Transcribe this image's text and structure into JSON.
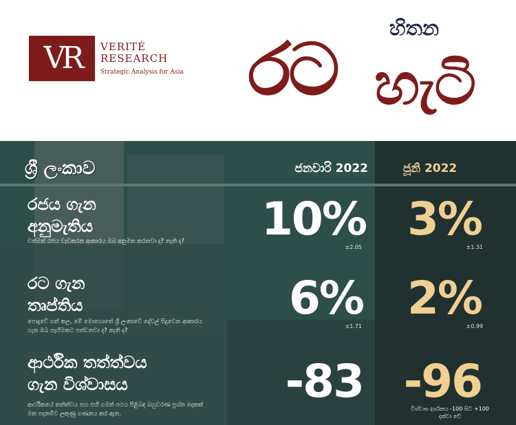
{
  "logo": {
    "mark": "VR",
    "name_line1": "VERITÉ",
    "name_line2": "RESEARCH",
    "tagline": "Strategic Analysis for Asia"
  },
  "brand": {
    "big": "රට",
    "top": "හිතන",
    "mid": "හැටි"
  },
  "table": {
    "country": "ශ්‍රී ලංකාව",
    "col_jan": "ජනවාරි 2022",
    "col_jun": "ජූනි 2022",
    "rows": [
      {
        "title_line1": "රජය ගැන",
        "title_line2": "අනුමැතිය",
        "subtitle": "වත්මන් රජය වැඩකරන ආකාරය ඔබ අනුමත කරනවා ද? නැති ද?",
        "jan_value": "10%",
        "jan_error": "±2.05",
        "jun_value": "3%",
        "jun_error": "±1.31"
      },
      {
        "title_line1": "රට ගැන",
        "title_line2": "තෘප්තිය",
        "subtitle": "පොදුවේ ගත් කල, මේ මොහොතේ ශ්‍රී ලංකාවේ දේවල් සිදුවෙන ආකාරය ගැන ඔබ සෑහීමකට පත්වනවා ද? නැති ද?",
        "jan_value": "6%",
        "jan_error": "±1.71",
        "jun_value": "2%",
        "jun_error": "±0.99"
      },
      {
        "title_line1": "ආර්ථික තත්ත්වය",
        "title_line2": "ගැන විශ්වාසය",
        "subtitle": "ආර්ථිකයේ තත්ත්වය සහ එහි ගමන් පථය පිළිබඳ බහුවරණ ප්‍රශ්න දෙකක් මත පදනම්ව ලකුණු ගණනය කර ඇත.",
        "jan_value": "-83",
        "jun_value": "-96",
        "scale_note": "විශ්වාස දර්ශකය -100 සිට +100 දක්වා වේ"
      }
    ]
  },
  "colors": {
    "maroon": "#7d1c1a",
    "navy": "#1e2744",
    "teal_panel": "#2e4e4a",
    "gold": "#f0cf93"
  }
}
